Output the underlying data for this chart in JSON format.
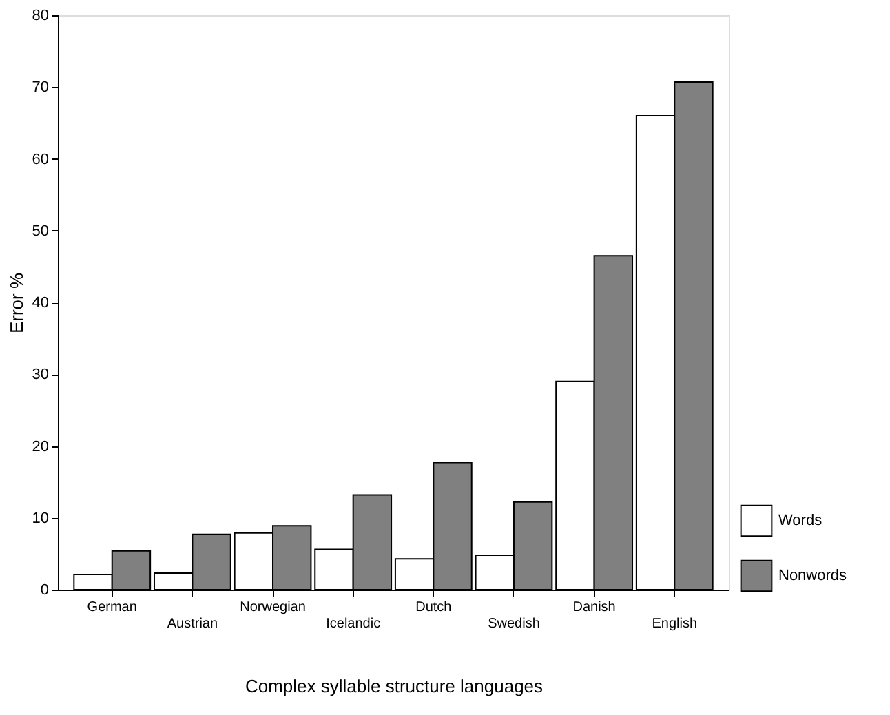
{
  "chart_data": {
    "type": "bar",
    "xlabel": "Complex syllable structure languages",
    "ylabel": "Error %",
    "categories": [
      "German",
      "Austrian",
      "Norwegian",
      "Icelandic",
      "Dutch",
      "Swedish",
      "Danish",
      "English"
    ],
    "series": [
      {
        "name": "Words",
        "color": "#ffffff",
        "values": [
          2.1,
          2.3,
          7.9,
          5.6,
          4.3,
          4.8,
          29.0,
          66.0
        ]
      },
      {
        "name": "Nonwords",
        "color": "#808080",
        "values": [
          5.4,
          7.7,
          8.9,
          13.2,
          17.7,
          12.2,
          46.5,
          70.7
        ]
      }
    ],
    "ylim": [
      0,
      80
    ],
    "yticks": [
      0,
      10,
      20,
      30,
      40,
      50,
      60,
      70,
      80
    ],
    "grid": false,
    "legend": "right"
  }
}
